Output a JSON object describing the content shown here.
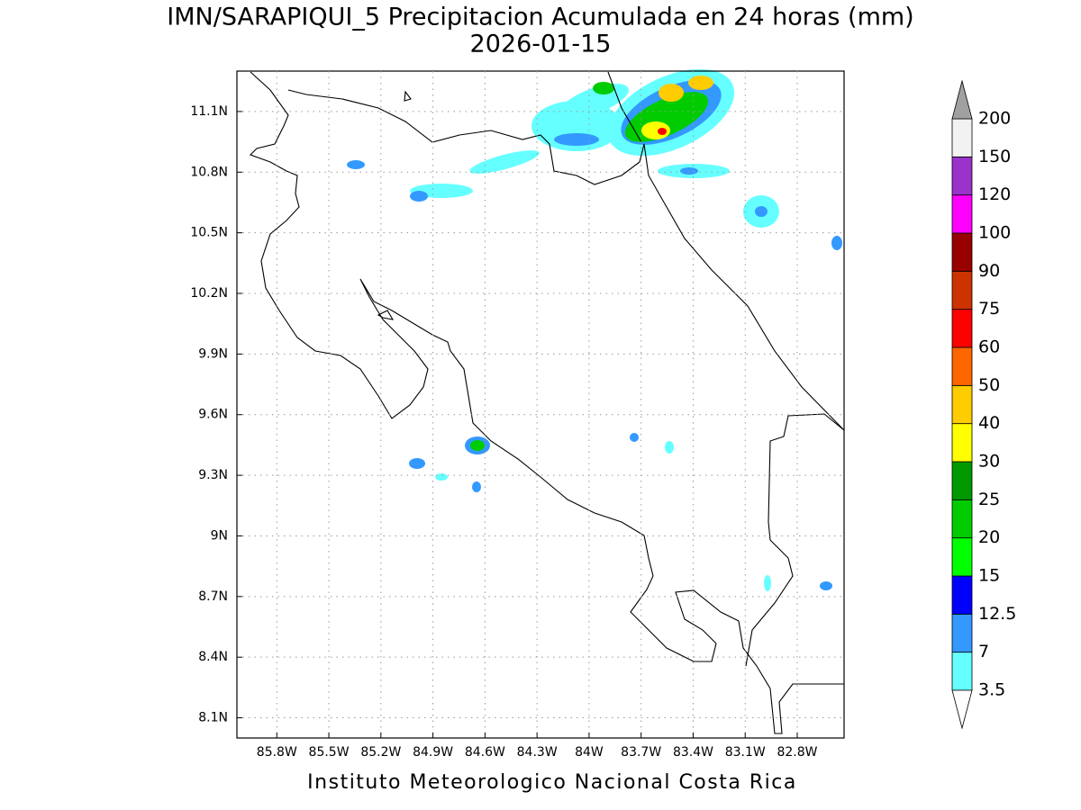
{
  "header": {
    "title": "IMN/SARAPIQUI_5 Precipitacion Acumulada en 24 horas (mm)",
    "date": "2026-01-15"
  },
  "map": {
    "xlim": [
      -86.03,
      -82.53
    ],
    "ylim": [
      8.0,
      11.3
    ],
    "xticks": [
      {
        "value": -85.8,
        "label": "85.8W"
      },
      {
        "value": -85.5,
        "label": "85.5W"
      },
      {
        "value": -85.2,
        "label": "85.2W"
      },
      {
        "value": -84.9,
        "label": "84.9W"
      },
      {
        "value": -84.6,
        "label": "84.6W"
      },
      {
        "value": -84.3,
        "label": "84.3W"
      },
      {
        "value": -84.0,
        "label": "84W"
      },
      {
        "value": -83.7,
        "label": "83.7W"
      },
      {
        "value": -83.4,
        "label": "83.4W"
      },
      {
        "value": -83.1,
        "label": "83.1W"
      },
      {
        "value": -82.8,
        "label": "82.8W"
      }
    ],
    "yticks": [
      {
        "value": 8.1,
        "label": "8.1N"
      },
      {
        "value": 8.4,
        "label": "8.4N"
      },
      {
        "value": 8.7,
        "label": "8.7N"
      },
      {
        "value": 9.0,
        "label": "9N"
      },
      {
        "value": 9.3,
        "label": "9.3N"
      },
      {
        "value": 9.6,
        "label": "9.6N"
      },
      {
        "value": 9.9,
        "label": "9.9N"
      },
      {
        "value": 10.2,
        "label": "10.2N"
      },
      {
        "value": 10.5,
        "label": "10.5N"
      },
      {
        "value": 10.8,
        "label": "10.8N"
      },
      {
        "value": 11.1,
        "label": "11.1N"
      }
    ],
    "grid": true
  },
  "colorbar": {
    "levels": [
      3.5,
      7,
      12.5,
      15,
      20,
      25,
      30,
      40,
      50,
      60,
      75,
      90,
      100,
      120,
      150,
      200
    ],
    "colors": [
      "#66ffff",
      "#3399ff",
      "#0000ff",
      "#00ff00",
      "#00cc00",
      "#009900",
      "#ffff00",
      "#ffcc00",
      "#ff6600",
      "#ff0000",
      "#cc3300",
      "#990000",
      "#ff00ff",
      "#9933cc",
      "#f2f2f2"
    ],
    "under_color": "#ffffff",
    "over_color": "#a0a0a0"
  },
  "footer": "Instituto Meteorologico Nacional Costa Rica"
}
